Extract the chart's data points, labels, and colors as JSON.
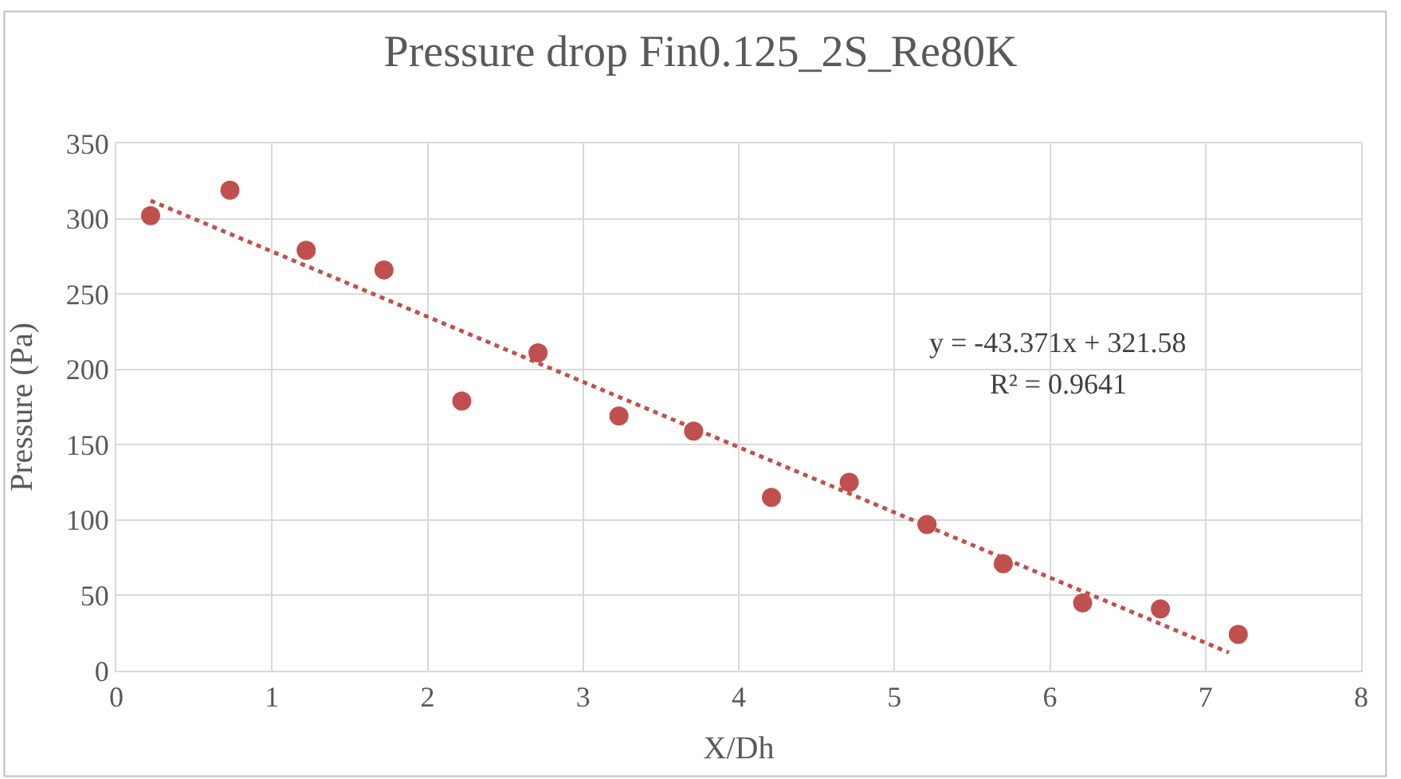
{
  "chart_data": {
    "type": "scatter",
    "title": "Pressure drop Fin0.125_2S_Re80K",
    "xlabel": "X/Dh",
    "ylabel": "Pressure (Pa)",
    "xlim": [
      0,
      8
    ],
    "xticks": [
      0,
      1,
      2,
      3,
      4,
      5,
      6,
      7,
      8
    ],
    "ylim": [
      0,
      350
    ],
    "yticks": [
      0,
      50,
      100,
      150,
      200,
      250,
      300,
      350
    ],
    "grid": true,
    "series": [
      {
        "color": "#c0504d",
        "marker": "circle",
        "x": [
          0.22,
          0.73,
          1.22,
          1.72,
          2.22,
          2.71,
          3.23,
          3.71,
          4.21,
          4.71,
          5.21,
          5.7,
          6.21,
          6.71,
          7.21
        ],
        "values": [
          302,
          319,
          279,
          266,
          179,
          211,
          169,
          159,
          115,
          125,
          97,
          71,
          45,
          41,
          24
        ]
      },
      {
        "type": "line",
        "color": "#c0504d",
        "line_style": "dotted",
        "marker": "none",
        "x": [
          0.22,
          7.15
        ],
        "values": [
          312,
          12
        ]
      }
    ],
    "annotations": [
      "y = -43.371x + 321.58",
      "R² = 0.9641"
    ]
  }
}
